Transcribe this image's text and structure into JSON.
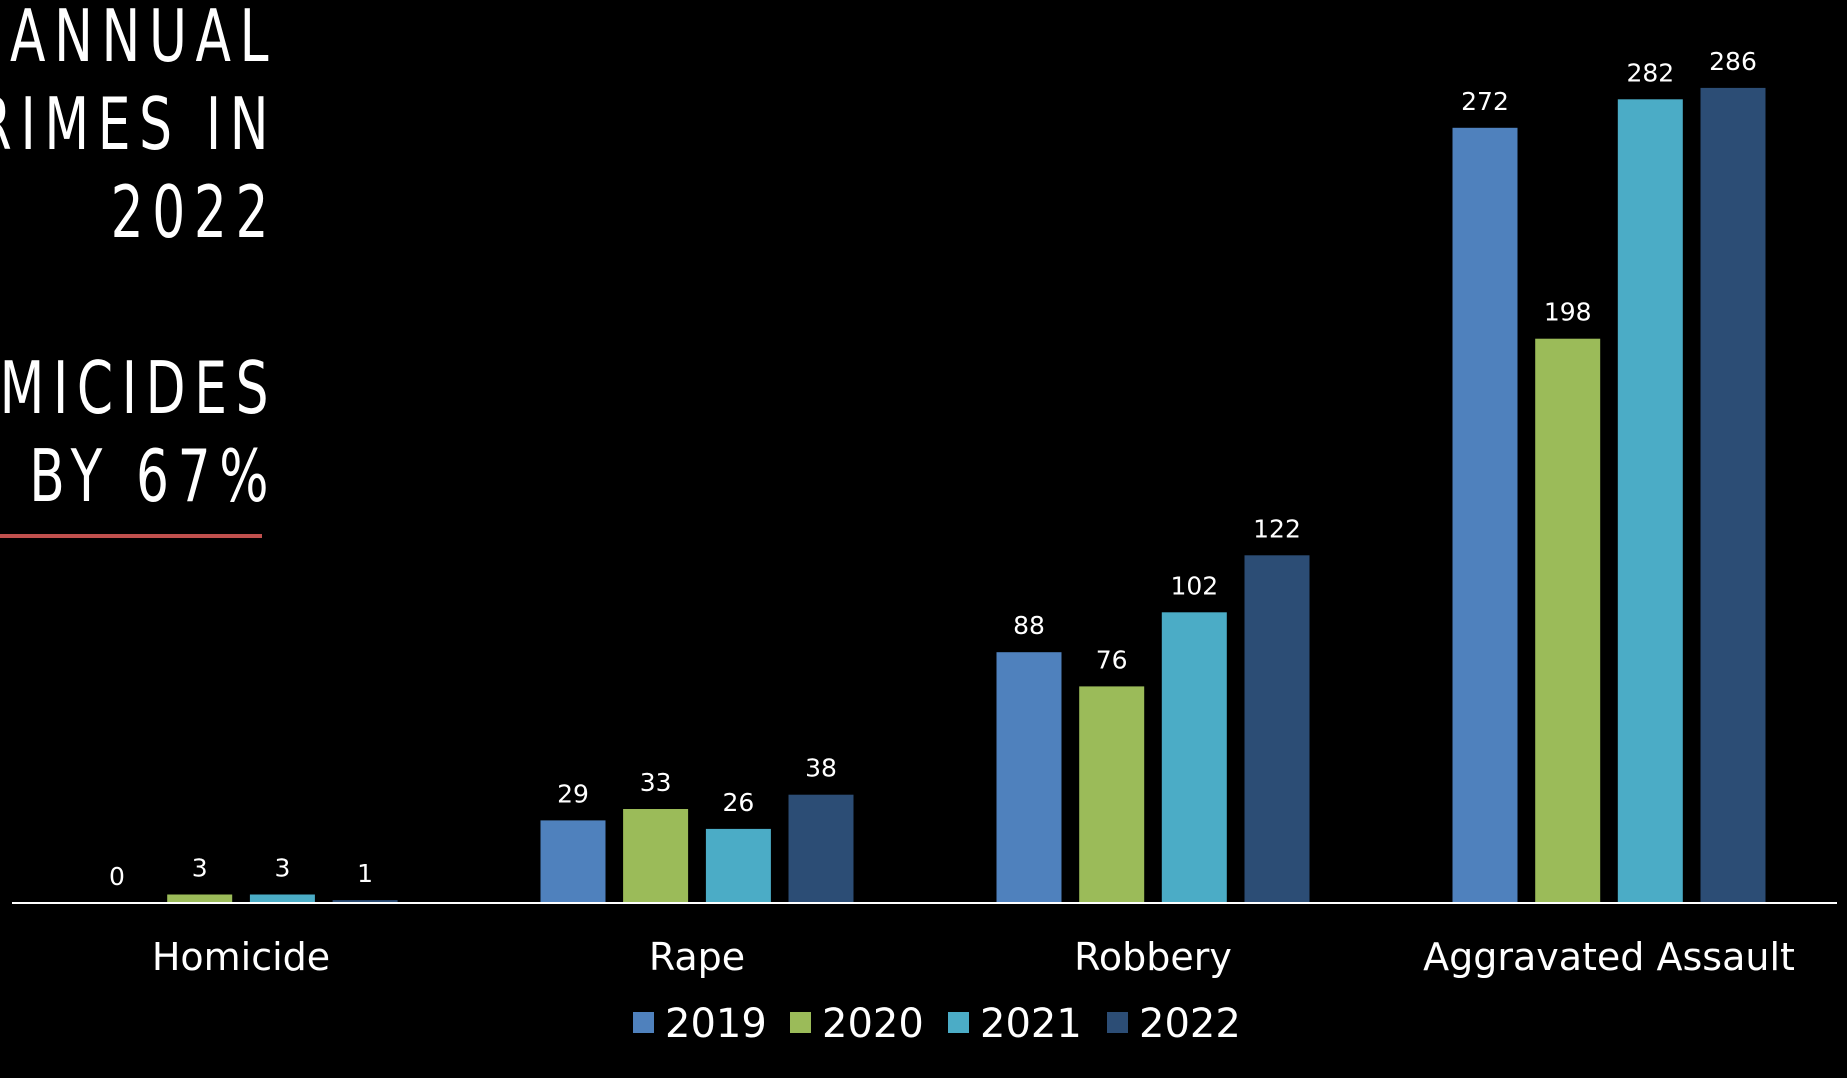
{
  "title": {
    "lines": [
      "ANNUAL",
      "RIMES IN",
      "2022",
      "",
      "OMICIDES",
      "BY 67%"
    ]
  },
  "colors": {
    "background": "#000000",
    "accent_rule": "#c0504d",
    "series_2019": "#4f81bd",
    "series_2020": "#9bbb59",
    "series_2021": "#4bacc6",
    "series_2022": "#2c4d75",
    "axis": "#ffffff",
    "text": "#ffffff"
  },
  "chart_data": {
    "type": "bar",
    "categories": [
      "Homicide",
      "Rape",
      "Robbery",
      "Aggravated Assault"
    ],
    "series": [
      {
        "name": "2019",
        "values": [
          0,
          29,
          88,
          272
        ]
      },
      {
        "name": "2020",
        "values": [
          3,
          33,
          76,
          198
        ]
      },
      {
        "name": "2021",
        "values": [
          3,
          26,
          102,
          282
        ]
      },
      {
        "name": "2022",
        "values": [
          1,
          38,
          122,
          286
        ]
      }
    ],
    "data_labels": true,
    "legend_position": "bottom",
    "grid": false
  }
}
